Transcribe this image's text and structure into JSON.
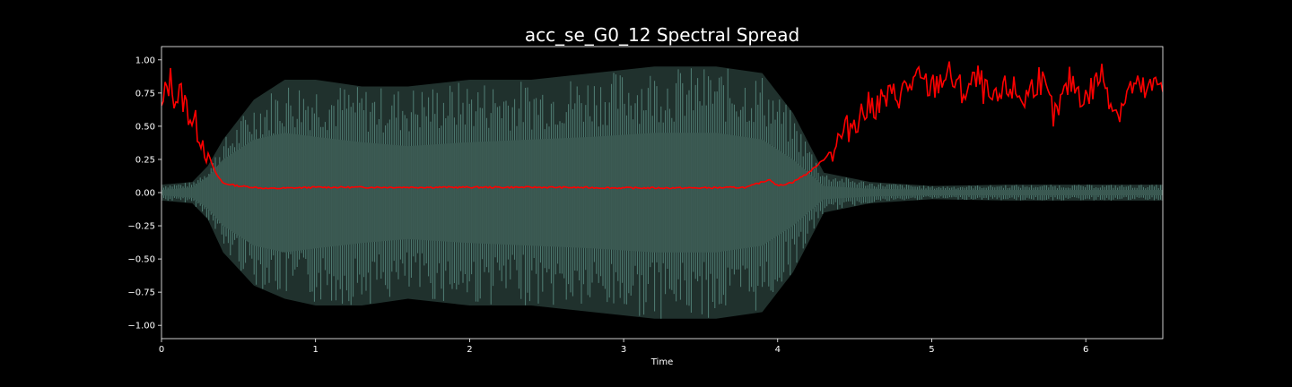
{
  "chart_data": {
    "type": "line",
    "title": "acc_se_G0_12 Spectral Spread",
    "xlabel": "Time",
    "ylabel": "",
    "xlim": [
      0,
      6.5
    ],
    "ylim": [
      -1.1,
      1.1
    ],
    "x_ticks": [
      0,
      1,
      2,
      3,
      4,
      5,
      6
    ],
    "x_tick_labels": [
      "0",
      "1",
      "2",
      "3",
      "4",
      "5",
      "6"
    ],
    "y_ticks": [
      1.0,
      0.75,
      0.5,
      0.25,
      0.0,
      -0.25,
      -0.5,
      -0.75,
      -1.0
    ],
    "y_tick_labels": [
      "1.00",
      "0.75",
      "0.50",
      "0.25",
      "0.00",
      "−0.25",
      "−0.50",
      "−0.75",
      "−1.00"
    ],
    "grid": false,
    "legend": "none",
    "colors": {
      "background": "#000000",
      "axes": "#ffffff",
      "waveform": "#5f9488",
      "waveform_fill": "#3b5a52",
      "spread_line": "#ff0000"
    },
    "series": [
      {
        "type": "waveform-envelope",
        "x": [
          0,
          0.2,
          0.3,
          0.4,
          0.6,
          0.8,
          1.0,
          1.3,
          1.6,
          2.0,
          2.4,
          2.8,
          3.2,
          3.6,
          3.9,
          4.1,
          4.3,
          4.6,
          5.0,
          5.5,
          6.0,
          6.5
        ],
        "upper": [
          0.06,
          0.08,
          0.2,
          0.4,
          0.7,
          0.85,
          0.85,
          0.8,
          0.8,
          0.85,
          0.85,
          0.9,
          0.95,
          0.95,
          0.9,
          0.6,
          0.15,
          0.08,
          0.05,
          0.06,
          0.06,
          0.06
        ],
        "lower": [
          -0.06,
          -0.08,
          -0.2,
          -0.45,
          -0.7,
          -0.8,
          -0.85,
          -0.85,
          -0.8,
          -0.85,
          -0.85,
          -0.9,
          -0.95,
          -0.95,
          -0.9,
          -0.6,
          -0.15,
          -0.08,
          -0.05,
          -0.06,
          -0.06,
          -0.06
        ],
        "core_upper": [
          0.02,
          0.04,
          0.12,
          0.25,
          0.4,
          0.45,
          0.42,
          0.38,
          0.35,
          0.38,
          0.4,
          0.42,
          0.45,
          0.45,
          0.4,
          0.25,
          0.05,
          0.03,
          0.02,
          0.02,
          0.02,
          0.02
        ],
        "core_lower": [
          -0.02,
          -0.04,
          -0.12,
          -0.25,
          -0.4,
          -0.45,
          -0.42,
          -0.38,
          -0.35,
          -0.38,
          -0.4,
          -0.42,
          -0.45,
          -0.45,
          -0.4,
          -0.25,
          -0.05,
          -0.03,
          -0.02,
          -0.02,
          -0.02,
          -0.02
        ]
      },
      {
        "type": "line",
        "x": [
          0,
          0.03,
          0.06,
          0.09,
          0.12,
          0.15,
          0.2,
          0.25,
          0.3,
          0.35,
          0.4,
          0.5,
          0.7,
          1.0,
          1.5,
          2.0,
          2.5,
          3.0,
          3.5,
          3.8,
          3.95,
          4.0,
          4.1,
          4.2,
          4.3,
          4.4,
          4.5,
          4.6,
          4.7,
          4.8,
          4.9,
          5.0,
          5.1,
          5.2,
          5.3,
          5.4,
          5.5,
          5.6,
          5.7,
          5.8,
          5.9,
          6.0,
          6.1,
          6.2,
          6.3,
          6.4,
          6.5
        ],
        "y": [
          0.6,
          0.78,
          0.85,
          0.7,
          0.75,
          0.68,
          0.55,
          0.45,
          0.3,
          0.15,
          0.07,
          0.05,
          0.03,
          0.04,
          0.04,
          0.04,
          0.04,
          0.035,
          0.035,
          0.04,
          0.1,
          0.05,
          0.08,
          0.15,
          0.25,
          0.4,
          0.55,
          0.65,
          0.7,
          0.75,
          0.85,
          0.78,
          0.9,
          0.75,
          0.85,
          0.65,
          0.8,
          0.7,
          0.88,
          0.55,
          0.85,
          0.7,
          0.9,
          0.6,
          0.8,
          0.75,
          0.85
        ]
      }
    ]
  }
}
